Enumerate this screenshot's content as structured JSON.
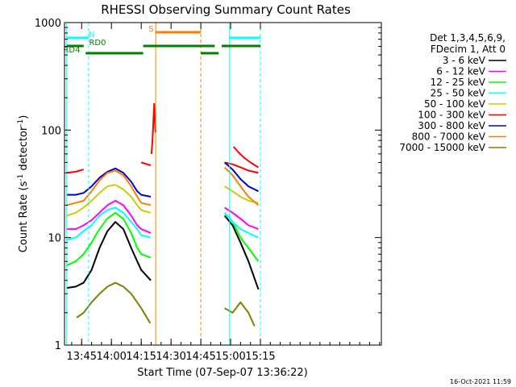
{
  "chart_data": {
    "type": "line",
    "title": "RHESSI Observing Summary Count Rates",
    "xlabel": "Start Time (07-Sep-07 13:36:22)",
    "ylabel_parts": [
      "Count Rate (s",
      "-1",
      " detector",
      "-1",
      ")"
    ],
    "ylabel_full": "Count Rate (s-1 detector-1)",
    "y_scale": "log",
    "ylim": [
      1,
      1000
    ],
    "xlim_minutes": [
      36.37,
      195.9
    ],
    "x_units": "minutes after 13:00 UT",
    "x_ticks": [
      {
        "value": 45,
        "label": "13:45"
      },
      {
        "value": 60,
        "label": "14:00"
      },
      {
        "value": 75,
        "label": "14:15"
      },
      {
        "value": 90,
        "label": "14:30"
      },
      {
        "value": 105,
        "label": "14:45"
      },
      {
        "value": 120,
        "label": "15:00"
      },
      {
        "value": 135,
        "label": "15:15"
      }
    ],
    "y_ticks": [
      {
        "value": 1,
        "label": "1"
      },
      {
        "value": 10,
        "label": "10"
      },
      {
        "value": 100,
        "label": "100"
      },
      {
        "value": 1000,
        "label": "1000"
      }
    ],
    "legend_header": [
      "Det 1,3,4,5,6,9,",
      "FDecim 1, Att 0"
    ],
    "legend_position": "right",
    "series": [
      {
        "name": "3 - 6 keV",
        "color": "#000000",
        "segments": [
          {
            "x": [
              37.5,
              42,
              46,
              50,
              54,
              58,
              62,
              66,
              70,
              73,
              75,
              79.8
            ],
            "y": [
              3.4,
              3.5,
              3.8,
              5,
              8,
              11.5,
              14,
              12,
              8,
              6,
              5,
              4
            ]
          },
          {
            "x": [
              117,
              121,
              125,
              129,
              134
            ],
            "y": [
              16,
              13,
              9,
              6,
              3.3
            ]
          }
        ]
      },
      {
        "name": "6 - 12 keV",
        "color": "#ff00ff",
        "segments": [
          {
            "x": [
              37.5,
              42,
              46,
              50,
              54,
              58,
              62,
              66,
              70,
              73,
              75,
              79.8
            ],
            "y": [
              12,
              12,
              13,
              14.5,
              17,
              20,
              22,
              20,
              16,
              13,
              12,
              11
            ]
          },
          {
            "x": [
              117,
              121,
              125,
              129,
              134
            ],
            "y": [
              19,
              17,
              15,
              13,
              12
            ]
          }
        ]
      },
      {
        "name": "12 - 25 keV",
        "color": "#00ff00",
        "segments": [
          {
            "x": [
              37.5,
              42,
              46,
              50,
              54,
              58,
              62,
              66,
              70,
              73,
              75,
              79.8
            ],
            "y": [
              5.5,
              6,
              7,
              9,
              12,
              15,
              17,
              15,
              11,
              8,
              7,
              6.5
            ]
          },
          {
            "x": [
              117,
              121,
              125,
              129,
              134
            ],
            "y": [
              17,
              14,
              10,
              8,
              6
            ]
          }
        ]
      },
      {
        "name": "25 - 50 keV",
        "color": "#00ffff",
        "segments": [
          {
            "x": [
              37.5,
              42,
              46,
              50,
              54,
              58,
              62,
              66,
              70,
              73,
              75,
              79.8
            ],
            "y": [
              9.5,
              10,
              11.5,
              13,
              16,
              18,
              19,
              17,
              14,
              12,
              10.5,
              10
            ]
          },
          {
            "x": [
              117,
              121,
              125,
              129,
              134
            ],
            "y": [
              17,
              14,
              12,
              11,
              10
            ]
          }
        ]
      },
      {
        "name": "50 - 100 keV",
        "color": "#cccc00",
        "segments": [
          {
            "x": [
              37.5,
              42,
              46,
              50,
              54,
              58,
              62,
              66,
              70,
              73,
              75,
              79.8
            ],
            "y": [
              16,
              17,
              19,
              22,
              26,
              30,
              31,
              28,
              24,
              20,
              18,
              17
            ]
          },
          {
            "x": [
              117,
              121,
              125,
              129,
              134
            ],
            "y": [
              30,
              27,
              24,
              22,
              21
            ]
          }
        ]
      },
      {
        "name": "100 - 300 keV",
        "color": "#ff0000",
        "segments": [
          {
            "x": [
              37.5,
              42,
              46
            ],
            "y": [
              40,
              41,
              43
            ]
          },
          {
            "x": [
              75,
              79.8
            ],
            "y": [
              50,
              47
            ]
          },
          {
            "x": [
              80.2,
              80.8,
              81.5,
              82.2
            ],
            "y": [
              60,
              90,
              175,
              95
            ]
          },
          {
            "x": [
              117,
              121,
              125,
              129,
              134
            ],
            "y": [
              50,
              48,
              45,
              42,
              40
            ]
          },
          {
            "x": [
              121.5,
              124,
              127,
              130,
              134
            ],
            "y": [
              70,
              62,
              55,
              50,
              45
            ]
          }
        ]
      },
      {
        "name": "300 - 800 keV",
        "color": "#0000cc",
        "segments": [
          {
            "x": [
              37.5,
              42,
              46,
              50,
              54,
              58,
              62,
              66,
              70,
              73,
              75,
              79.8
            ],
            "y": [
              25,
              25,
              26,
              30,
              36,
              41,
              44,
              40,
              33,
              27,
              25,
              24
            ]
          },
          {
            "x": [
              117,
              121,
              125,
              129,
              134
            ],
            "y": [
              50,
              43,
              35,
              30,
              27
            ]
          }
        ]
      },
      {
        "name": "800 - 7000 keV",
        "color": "#ff8000",
        "segments": [
          {
            "x": [
              37.5,
              42,
              46,
              50,
              54,
              58,
              62,
              66,
              70,
              73,
              75,
              79.8
            ],
            "y": [
              20,
              21,
              22,
              27,
              34,
              40,
              42,
              38,
              30,
              24,
              21,
              20
            ]
          },
          {
            "x": [
              117,
              121,
              125,
              129,
              134
            ],
            "y": [
              45,
              38,
              30,
              24,
              20
            ]
          }
        ]
      },
      {
        "name": "7000 - 15000 keV",
        "color": "#808000",
        "segments": [
          {
            "x": [
              42.5,
              46,
              50,
              54,
              58,
              62,
              66,
              70,
              73,
              75,
              79.5
            ],
            "y": [
              1.8,
              2,
              2.5,
              3,
              3.5,
              3.8,
              3.5,
              3,
              2.5,
              2.2,
              1.6
            ]
          },
          {
            "x": [
              117,
              121,
              125,
              129,
              132
            ],
            "y": [
              2.2,
              2,
              2.5,
              2,
              1.5
            ]
          }
        ]
      }
    ],
    "flag_bars": [
      {
        "label": "N",
        "color": "#00ffff",
        "level": "upper",
        "ranges": [
          [
            37.5,
            48.5
          ],
          [
            119.5,
            135
          ]
        ],
        "label_at": 50
      },
      {
        "label": "S",
        "color": "#ff8000",
        "level": "upper",
        "ranges": [
          [
            82.5,
            105
          ]
        ],
        "label_at": 80
      },
      {
        "label": "RD0",
        "color": "#008000",
        "level": "middle",
        "ranges": [
          [
            37.5,
            46
          ],
          [
            76,
            112
          ],
          [
            115.5,
            135
          ]
        ],
        "label_at": 53
      },
      {
        "label": "RD4",
        "color": "#008000",
        "level": "lower",
        "ranges": [
          [
            47,
            76
          ],
          [
            105,
            114
          ]
        ],
        "label_at": 40
      }
    ],
    "vertical_markers": [
      {
        "color": "#00ffff",
        "style": "solid",
        "x": 37.5
      },
      {
        "color": "#00ffff",
        "style": "dashed",
        "x": 48.5
      },
      {
        "color": "#ff8000",
        "style": "solid",
        "x": 82.3
      },
      {
        "color": "#ff8000",
        "style": "dashed",
        "x": 105
      },
      {
        "color": "#00ffff",
        "style": "solid",
        "x": 119.5
      },
      {
        "color": "#00ffff",
        "style": "dashed",
        "x": 135
      }
    ],
    "footer_date": "16-Oct-2021 11:59"
  }
}
